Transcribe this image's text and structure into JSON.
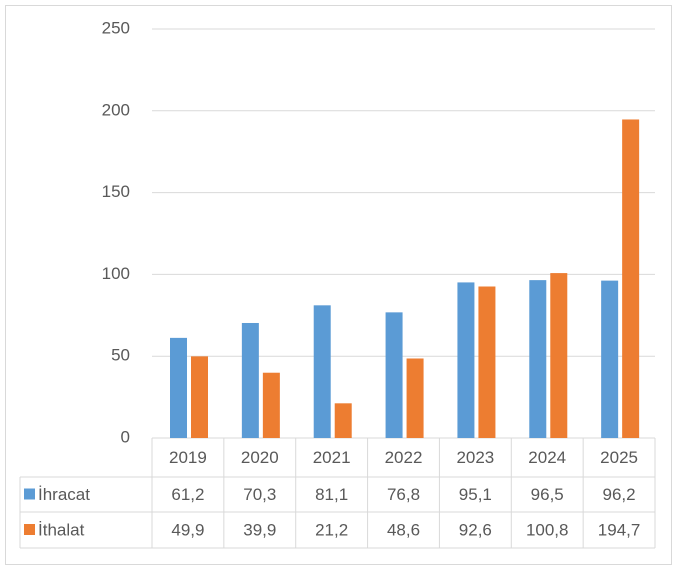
{
  "chart_data": {
    "type": "bar",
    "categories": [
      "2019",
      "2020",
      "2021",
      "2022",
      "2023",
      "2024",
      "2025"
    ],
    "series": [
      {
        "name": "İhracat",
        "color": "#5b9bd5",
        "values": [
          61.2,
          70.3,
          81.1,
          76.8,
          95.1,
          96.5,
          96.2
        ],
        "value_labels": [
          "61,2",
          "70,3",
          "81,1",
          "76,8",
          "95,1",
          "96,5",
          "96,2"
        ]
      },
      {
        "name": "İthalat",
        "color": "#ed7d31",
        "values": [
          49.9,
          39.9,
          21.2,
          48.6,
          92.6,
          100.8,
          194.7
        ],
        "value_labels": [
          "49,9",
          "39,9",
          "21,2",
          "48,6",
          "92,6",
          "100,8",
          "194,7"
        ]
      }
    ],
    "ylim": [
      0,
      250
    ],
    "yticks": [
      0,
      50,
      100,
      150,
      200,
      250
    ],
    "grid": true,
    "data_table": true
  }
}
